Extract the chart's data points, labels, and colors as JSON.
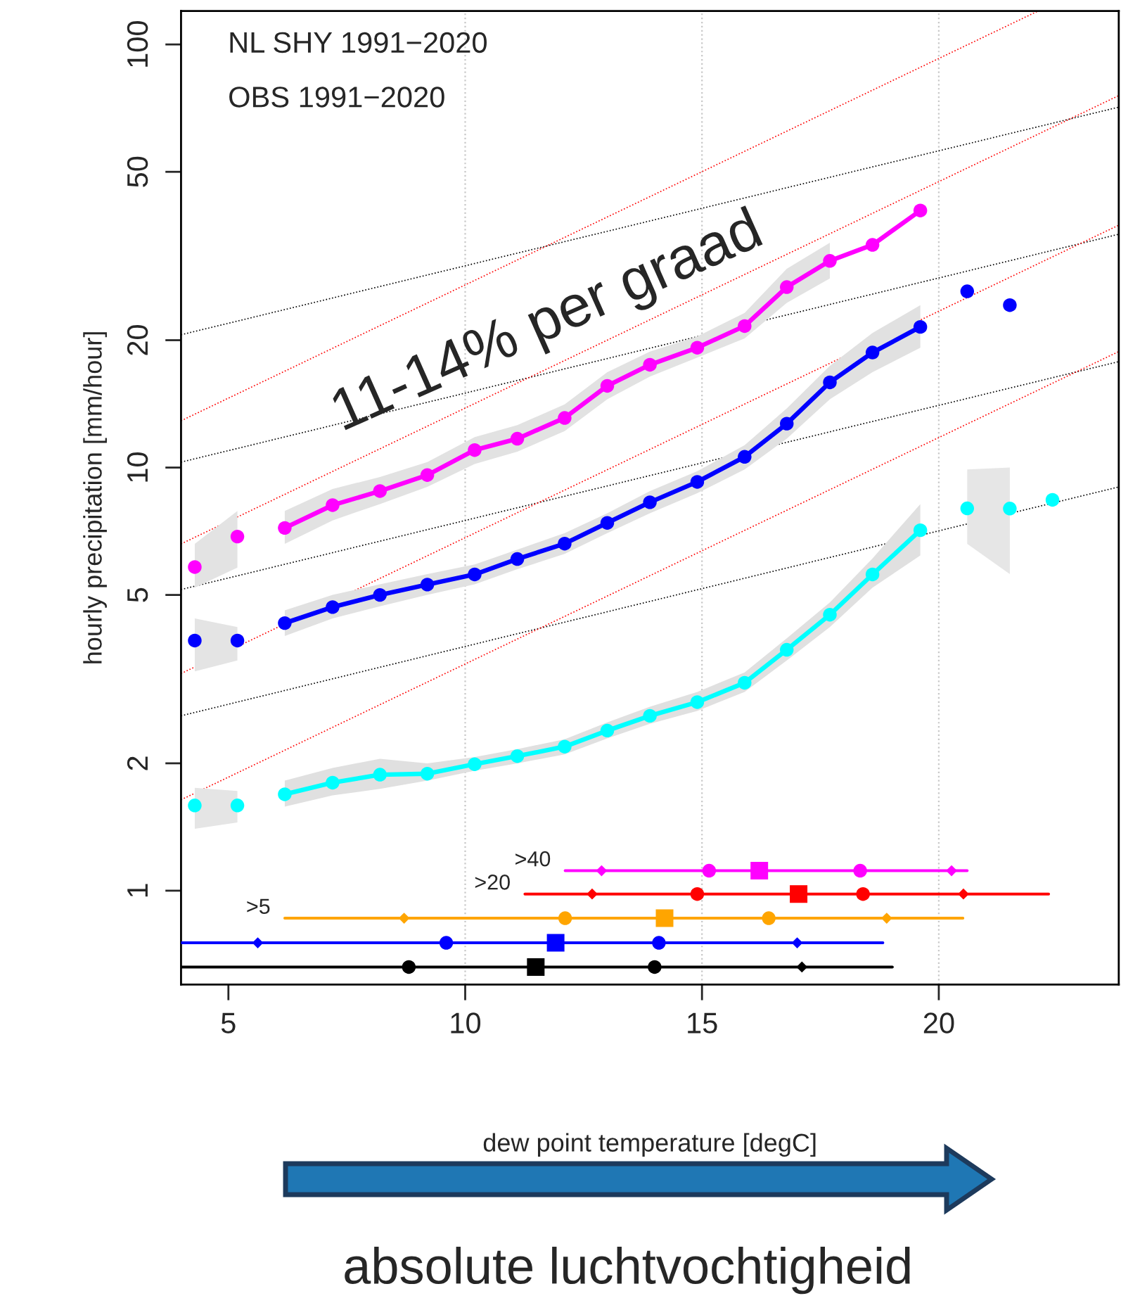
{
  "chart_data": {
    "type": "line",
    "xlabel": "dew point temperature [degC]",
    "ylabel": "hourly precipitation [mm/hour]",
    "log": "y",
    "xlim": [
      4,
      23.8
    ],
    "xticks": [
      5,
      10,
      15,
      20
    ],
    "ylim": [
      0.6,
      120
    ],
    "yticks": [
      1,
      2,
      5,
      10,
      20,
      50,
      100
    ],
    "legend": false,
    "grid": false,
    "ref_lines": [
      {
        "axis": "x",
        "value": 10,
        "color": "#c8c8c8",
        "line_style": "dotted"
      },
      {
        "axis": "x",
        "value": 15,
        "color": "#c8c8c8",
        "line_style": "dotted"
      },
      {
        "axis": "x",
        "value": 20,
        "color": "#c8c8c8",
        "line_style": "dotted"
      }
    ],
    "series": [
      {
        "color": "#000000",
        "line_style": "dotted",
        "marker": "none",
        "x": [
          4,
          23.8
        ],
        "values": [
          20.6,
          71.1
        ]
      },
      {
        "color": "#000000",
        "line_style": "dotted",
        "marker": "none",
        "x": [
          4,
          23.8
        ],
        "values": [
          10.3,
          35.6
        ]
      },
      {
        "color": "#000000",
        "line_style": "dotted",
        "marker": "none",
        "x": [
          4,
          23.8
        ],
        "values": [
          5.15,
          17.8
        ]
      },
      {
        "color": "#000000",
        "line_style": "dotted",
        "marker": "none",
        "x": [
          4,
          23.8
        ],
        "values": [
          2.59,
          9.0
        ]
      },
      {
        "color": "#ff0000",
        "line_style": "dotted",
        "marker": "none",
        "x": [
          4,
          22.1
        ],
        "values": [
          12.9,
          120
        ]
      },
      {
        "color": "#ff0000",
        "line_style": "dotted",
        "marker": "none",
        "x": [
          4,
          23.8
        ],
        "values": [
          6.6,
          75.7
        ]
      },
      {
        "color": "#ff0000",
        "line_style": "dotted",
        "marker": "none",
        "x": [
          4,
          23.8
        ],
        "values": [
          3.26,
          37.4
        ]
      },
      {
        "color": "#ff0000",
        "line_style": "dotted",
        "marker": "none",
        "x": [
          4,
          23.8
        ],
        "values": [
          1.64,
          18.8
        ]
      },
      {
        "type": "scatter",
        "color": "#ff00ff",
        "marker": "circle",
        "x": [
          4.29,
          5.19
        ],
        "values": [
          5.82,
          6.87
        ],
        "lower": [
          5.2,
          5.8
        ],
        "upper": [
          6.6,
          7.9
        ]
      },
      {
        "color": "#ff00ff",
        "marker": "circle",
        "line_style": "solid",
        "x": [
          6.19,
          7.2,
          8.2,
          9.2,
          10.2,
          11.1,
          12.1,
          13.0,
          13.9,
          14.9,
          15.9,
          16.79,
          17.7,
          18.6,
          19.61
        ],
        "values": [
          7.2,
          8.15,
          8.8,
          9.6,
          11.0,
          11.7,
          13.1,
          15.6,
          17.5,
          19.2,
          21.6,
          26.7,
          30.8,
          33.6,
          40.5
        ],
        "lower": [
          6.6,
          7.5,
          8.2,
          9.0,
          10.2,
          10.9,
          12.2,
          14.5,
          16.4,
          18.2,
          20.2,
          24.5,
          28.0,
          null,
          null
        ],
        "upper": [
          7.9,
          8.9,
          9.5,
          10.3,
          11.8,
          12.6,
          14.1,
          16.8,
          18.8,
          20.4,
          23.2,
          29.5,
          34.0,
          null,
          null
        ]
      },
      {
        "type": "scatter",
        "color": "#0000ff",
        "marker": "circle",
        "x": [
          4.29,
          5.19
        ],
        "values": [
          3.9,
          3.9
        ],
        "lower": [
          3.3,
          3.5
        ],
        "upper": [
          4.4,
          4.2
        ]
      },
      {
        "color": "#0000ff",
        "marker": "circle",
        "line_style": "solid",
        "x": [
          6.19,
          7.2,
          8.2,
          9.2,
          10.2,
          11.1,
          12.1,
          13.0,
          13.9,
          14.9,
          15.9,
          16.79,
          17.7,
          18.6,
          19.61
        ],
        "values": [
          4.29,
          4.68,
          5.0,
          5.29,
          5.59,
          6.08,
          6.61,
          7.4,
          8.28,
          9.25,
          10.6,
          12.7,
          15.9,
          18.7,
          21.5
        ],
        "lower": [
          4.0,
          4.4,
          4.7,
          5.0,
          5.3,
          5.75,
          6.25,
          7.0,
          7.8,
          8.7,
          9.9,
          11.7,
          14.5,
          16.8,
          19.2
        ],
        "upper": [
          4.6,
          5.0,
          5.3,
          5.6,
          5.9,
          6.4,
          7.0,
          7.8,
          8.8,
          9.8,
          11.3,
          13.8,
          17.4,
          20.8,
          24.2
        ]
      },
      {
        "type": "scatter",
        "color": "#0000ff",
        "marker": "circle",
        "x": [
          20.6,
          21.5
        ],
        "values": [
          26.1,
          24.2
        ]
      },
      {
        "type": "scatter",
        "color": "#00ffff",
        "marker": "circle",
        "x": [
          4.29,
          5.19
        ],
        "values": [
          1.59,
          1.59
        ],
        "lower": [
          1.4,
          1.45
        ],
        "upper": [
          1.75,
          1.72
        ]
      },
      {
        "color": "#00ffff",
        "marker": "circle",
        "line_style": "solid",
        "x": [
          6.19,
          7.2,
          8.2,
          9.2,
          10.2,
          11.1,
          12.1,
          13.0,
          13.9,
          14.9,
          15.9,
          16.79,
          17.7,
          18.6,
          19.61
        ],
        "values": [
          1.69,
          1.8,
          1.88,
          1.89,
          1.99,
          2.08,
          2.19,
          2.39,
          2.59,
          2.79,
          3.1,
          3.71,
          4.49,
          5.59,
          7.11
        ],
        "lower": [
          1.58,
          1.68,
          1.74,
          1.82,
          1.92,
          2.0,
          2.1,
          2.29,
          2.48,
          2.66,
          2.95,
          3.5,
          4.2,
          5.2,
          6.2
        ],
        "upper": [
          1.82,
          1.95,
          2.05,
          2.0,
          2.07,
          2.16,
          2.28,
          2.5,
          2.72,
          2.95,
          3.28,
          3.95,
          4.8,
          6.1,
          8.2
        ]
      },
      {
        "type": "scatter",
        "color": "#00ffff",
        "marker": "circle",
        "x": [
          20.6,
          21.5,
          22.4
        ],
        "values": [
          8.01,
          8.0,
          8.39
        ],
        "lower": [
          6.6,
          5.6,
          null
        ],
        "upper": [
          9.9,
          10.0,
          null
        ]
      },
      {
        "name": ">40",
        "color": "#ff00ff",
        "line_style": "solid",
        "marker": "none",
        "x": [
          12.11,
          20.6
        ],
        "values": [
          1.115,
          1.115
        ]
      },
      {
        "type": "scatter",
        "color": "#ff00ff",
        "marker": "diamond",
        "x": [
          12.88,
          20.27
        ],
        "values": [
          1.115,
          1.115
        ]
      },
      {
        "type": "scatter",
        "color": "#ff00ff",
        "marker": "circle",
        "x": [
          15.15,
          18.34
        ],
        "values": [
          1.115,
          1.115
        ]
      },
      {
        "type": "scatter",
        "color": "#ff00ff",
        "marker": "square",
        "x": [
          16.21
        ],
        "values": [
          1.115
        ]
      },
      {
        "name": ">20",
        "color": "#ff0000",
        "line_style": "solid",
        "marker": "none",
        "x": [
          11.26,
          22.32
        ],
        "values": [
          0.982,
          0.982
        ]
      },
      {
        "type": "scatter",
        "color": "#ff0000",
        "marker": "diamond",
        "x": [
          12.68,
          20.52
        ],
        "values": [
          0.982,
          0.982
        ]
      },
      {
        "type": "scatter",
        "color": "#ff0000",
        "marker": "circle",
        "x": [
          14.9,
          18.4
        ],
        "values": [
          0.982,
          0.982
        ]
      },
      {
        "type": "scatter",
        "color": "#ff0000",
        "marker": "square",
        "x": [
          17.04
        ],
        "values": [
          0.982
        ]
      },
      {
        "name": ">5",
        "color": "#ffa500",
        "line_style": "solid",
        "marker": "none",
        "x": [
          6.19,
          20.51
        ],
        "values": [
          0.861,
          0.861
        ]
      },
      {
        "type": "scatter",
        "color": "#ffa500",
        "marker": "diamond",
        "x": [
          8.71,
          18.9
        ],
        "values": [
          0.861,
          0.861
        ]
      },
      {
        "type": "scatter",
        "color": "#ffa500",
        "marker": "circle",
        "x": [
          12.11,
          16.41
        ],
        "values": [
          0.861,
          0.861
        ]
      },
      {
        "type": "scatter",
        "color": "#ffa500",
        "marker": "square",
        "x": [
          14.21
        ],
        "values": [
          0.861
        ]
      },
      {
        "color": "#0000ff",
        "line_style": "solid",
        "marker": "none",
        "x": [
          4.01,
          18.82
        ],
        "values": [
          0.753,
          0.753
        ]
      },
      {
        "type": "scatter",
        "color": "#0000ff",
        "marker": "diamond",
        "x": [
          5.62,
          17.01
        ],
        "values": [
          0.753,
          0.753
        ]
      },
      {
        "type": "scatter",
        "color": "#0000ff",
        "marker": "circle",
        "x": [
          9.6,
          14.09
        ],
        "values": [
          0.753,
          0.753
        ]
      },
      {
        "type": "scatter",
        "color": "#0000ff",
        "marker": "square",
        "x": [
          11.91
        ],
        "values": [
          0.753
        ]
      },
      {
        "color": "#000000",
        "line_style": "solid",
        "marker": "none",
        "x": [
          4.01,
          19.02
        ],
        "values": [
          0.66,
          0.66
        ]
      },
      {
        "type": "scatter",
        "color": "#000000",
        "marker": "diamond",
        "x": [
          17.11
        ],
        "values": [
          0.66
        ]
      },
      {
        "type": "scatter",
        "color": "#000000",
        "marker": "circle",
        "x": [
          8.81,
          14.0
        ],
        "values": [
          0.66,
          0.66
        ]
      },
      {
        "type": "scatter",
        "color": "#000000",
        "marker": "square",
        "x": [
          11.49
        ],
        "values": [
          0.66
        ]
      }
    ],
    "annotations": [
      "NL SHY 1991−2020",
      "OBS 1991−2020",
      "11-14% per graad",
      "absolute luchtvochtigheid"
    ]
  }
}
